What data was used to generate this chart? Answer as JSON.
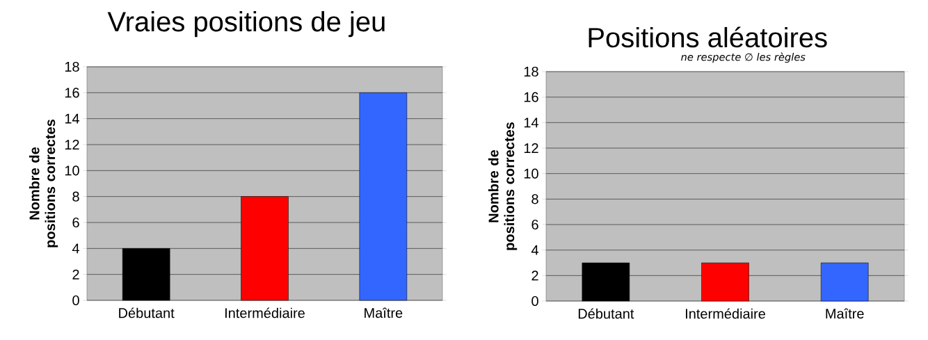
{
  "chart_data": [
    {
      "type": "bar",
      "title": "Vraies positions de jeu",
      "ylabel": "Nombre de positions correctes",
      "categories": [
        "Débutant",
        "Intermédiaire",
        "Maître"
      ],
      "values": [
        4,
        8,
        16
      ],
      "colors": [
        "#000000",
        "#ff0000",
        "#3366ff"
      ],
      "ylim": [
        0,
        18
      ],
      "yticks": [
        0,
        2,
        4,
        6,
        8,
        10,
        12,
        14,
        16,
        18
      ],
      "grid": "y"
    },
    {
      "type": "bar",
      "title": "Positions aléatoires",
      "ylabel": "Nombre de positions correctes",
      "categories": [
        "Débutant",
        "Intermédiaire",
        "Maître"
      ],
      "values": [
        3,
        3,
        3
      ],
      "colors": [
        "#000000",
        "#ff0000",
        "#3366ff"
      ],
      "ylim": [
        0,
        18
      ],
      "yticks": [
        0,
        2,
        4,
        6,
        8,
        10,
        12,
        14,
        16,
        18
      ],
      "grid": "y",
      "annotations": [
        "ne respecte ∅ les règles"
      ]
    }
  ]
}
